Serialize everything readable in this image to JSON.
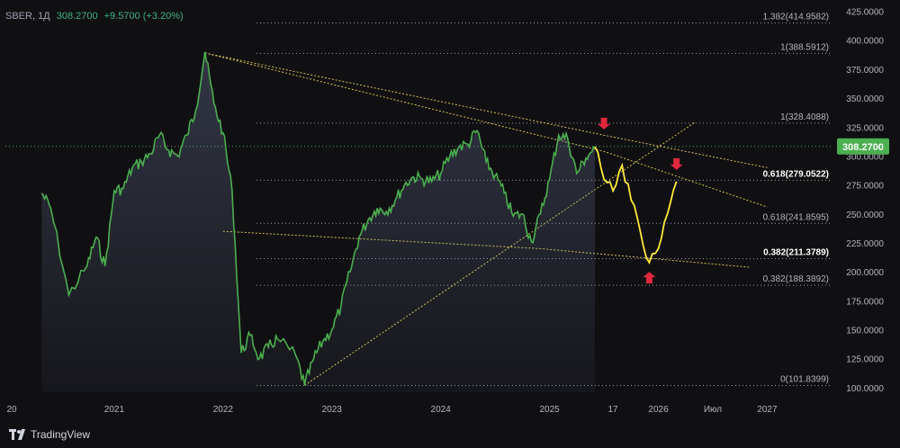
{
  "header": {
    "ticker": "SBER, 1Д",
    "price": "308.2700",
    "change": "+9.5700 (+3.20%)"
  },
  "brand": "TradingView",
  "colors": {
    "background": "#101013",
    "price_line": "#4caf50",
    "forecast_line": "#ffeb3b",
    "trend_lines": "#d6c24a",
    "fib_lines": "#9b9b9b",
    "current_price_tag": "#4caf50",
    "arrows": "#e0283c"
  },
  "icons": [
    "tradingview-logo-icon",
    "arrow-down-icon",
    "arrow-up-icon"
  ],
  "chart_data": {
    "type": "line",
    "ylim": [
      96,
      427
    ],
    "current_price": "308.2700",
    "y_ticks": [
      "425.0000",
      "400.0000",
      "375.0000",
      "350.0000",
      "325.0000",
      "300.0000",
      "275.0000",
      "250.0000",
      "225.0000",
      "200.0000",
      "175.0000",
      "150.0000",
      "125.0000",
      "100.0000"
    ],
    "x_ticks": [
      "20",
      "2021",
      "2022",
      "2023",
      "2024",
      "2025",
      "17",
      "2026",
      "Июл",
      "2027"
    ],
    "fib_levels": [
      {
        "label": "1.382(414.9582)",
        "value": 414.9582,
        "bold": false
      },
      {
        "label": "1(388.5912)",
        "value": 388.5912,
        "bold": false
      },
      {
        "label": "1(328.4088)",
        "value": 328.4088,
        "bold": false
      },
      {
        "label": "0.618(279.0522)",
        "value": 279.0522,
        "bold": true
      },
      {
        "label": "0.618(241.8595)",
        "value": 241.8595,
        "bold": false
      },
      {
        "label": "0.382(211.3789)",
        "value": 211.3789,
        "bold": true
      },
      {
        "label": "0.382(188.3892)",
        "value": 188.3892,
        "bold": false
      },
      {
        "label": "0(101.8399)",
        "value": 101.8399,
        "bold": false
      }
    ],
    "series": [
      {
        "x": [
          "2020-05",
          "2020-06",
          "2020-08",
          "2020-10",
          "2020-11",
          "2020-12",
          "2021-01",
          "2021-02",
          "2021-03",
          "2021-04",
          "2021-05",
          "2021-06",
          "2021-07",
          "2021-08",
          "2021-09",
          "2021-10",
          "2021-11",
          "2021-12",
          "2022-01",
          "2022-02",
          "2022-03",
          "2022-04",
          "2022-05",
          "2022-06",
          "2022-07",
          "2022-09",
          "2022-10",
          "2022-11",
          "2022-12",
          "2023-01",
          "2023-02",
          "2023-03",
          "2023-04",
          "2023-05",
          "2023-06",
          "2023-07",
          "2023-08",
          "2023-09",
          "2023-10",
          "2023-11",
          "2023-12",
          "2024-01",
          "2024-02",
          "2024-03",
          "2024-04",
          "2024-05",
          "2024-06",
          "2024-07",
          "2024-08",
          "2024-09",
          "2024-10",
          "2024-11",
          "2024-12",
          "2025-01",
          "2025-02",
          "2025-03",
          "2025-04",
          "2025-05",
          "2025-06"
        ],
        "values": [
          268,
          255,
          180,
          205,
          230,
          205,
          270,
          272,
          290,
          295,
          302,
          318,
          305,
          300,
          318,
          340,
          390,
          345,
          320,
          270,
          130,
          145,
          125,
          135,
          142,
          128,
          102,
          125,
          140,
          150,
          170,
          200,
          230,
          245,
          255,
          252,
          262,
          275,
          282,
          280,
          278,
          285,
          300,
          308,
          310,
          322,
          295,
          283,
          268,
          248,
          250,
          226,
          250,
          280,
          318,
          315,
          285,
          298,
          308
        ]
      },
      {
        "x": [
          "2025-06",
          "2025-07",
          "2025-08",
          "2025-09",
          "2025-10",
          "2025-11",
          "2025-12",
          "2026-01",
          "2026-02",
          "2026-03"
        ],
        "values": [
          308,
          280,
          270,
          292,
          262,
          235,
          208,
          220,
          250,
          278
        ]
      }
    ],
    "trend_lines": [
      {
        "x": [
          "2021-11",
          "2025-07",
          "2027-01"
        ],
        "values": [
          389,
          304,
          256
        ]
      },
      {
        "x": [
          "2021-11",
          "2025-07",
          "2027-01"
        ],
        "values": [
          389,
          318,
          290
        ]
      },
      {
        "x": [
          "2022-01",
          "2024-12",
          "2026-11"
        ],
        "values": [
          235,
          220,
          204
        ]
      },
      {
        "x": [
          "2022-10",
          "2026-05"
        ],
        "values": [
          102,
          329
        ]
      }
    ]
  }
}
